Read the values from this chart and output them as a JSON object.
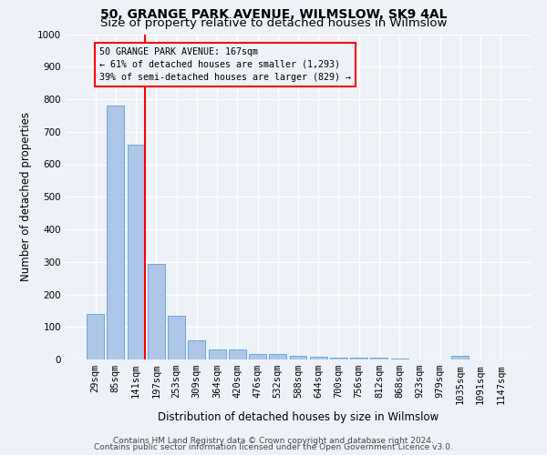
{
  "title": "50, GRANGE PARK AVENUE, WILMSLOW, SK9 4AL",
  "subtitle": "Size of property relative to detached houses in Wilmslow",
  "xlabel": "Distribution of detached houses by size in Wilmslow",
  "ylabel": "Number of detached properties",
  "bar_labels": [
    "29sqm",
    "85sqm",
    "141sqm",
    "197sqm",
    "253sqm",
    "309sqm",
    "364sqm",
    "420sqm",
    "476sqm",
    "532sqm",
    "588sqm",
    "644sqm",
    "700sqm",
    "756sqm",
    "812sqm",
    "868sqm",
    "923sqm",
    "979sqm",
    "1035sqm",
    "1091sqm",
    "1147sqm"
  ],
  "bar_values": [
    140,
    780,
    660,
    295,
    135,
    60,
    30,
    30,
    18,
    18,
    12,
    8,
    5,
    5,
    5,
    3,
    0,
    0,
    10,
    0,
    0
  ],
  "bar_color": "#aec6e8",
  "bar_edge_color": "#5a9fd4",
  "ylim": [
    0,
    1000
  ],
  "yticks": [
    0,
    100,
    200,
    300,
    400,
    500,
    600,
    700,
    800,
    900,
    1000
  ],
  "vline_x": 2.45,
  "annotation_title": "50 GRANGE PARK AVENUE: 167sqm",
  "annotation_line1": "← 61% of detached houses are smaller (1,293)",
  "annotation_line2": "39% of semi-detached houses are larger (829) →",
  "footer_line1": "Contains HM Land Registry data © Crown copyright and database right 2024.",
  "footer_line2": "Contains public sector information licensed under the Open Government Licence v3.0.",
  "bg_color": "#edf2f9",
  "grid_color": "#ffffff",
  "title_fontsize": 10,
  "subtitle_fontsize": 9.5,
  "axis_label_fontsize": 8.5,
  "tick_fontsize": 7.5,
  "footer_fontsize": 6.5
}
